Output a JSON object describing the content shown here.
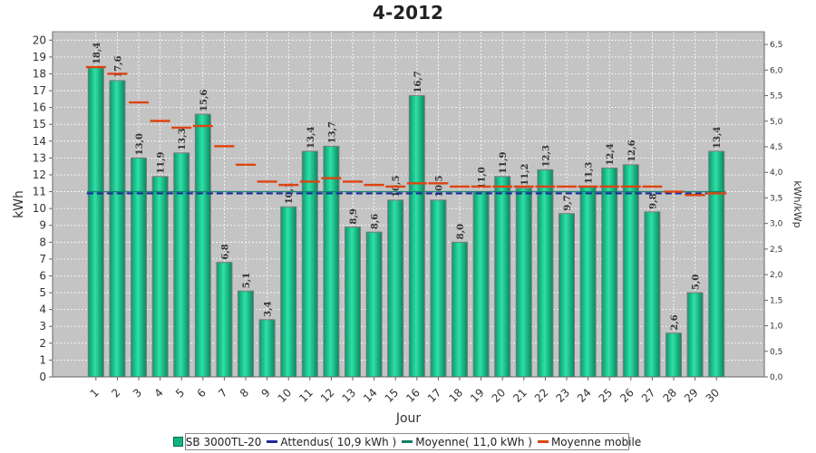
{
  "chart_data": {
    "type": "bar",
    "title": "4-2012",
    "xlabel": "Jour",
    "ylabel": "kWh",
    "y2label": "kWh/kWp",
    "ylim": [
      0,
      20.5
    ],
    "y2lim": [
      0,
      6.75
    ],
    "yticks": [
      "0",
      "1",
      "2",
      "3",
      "4",
      "5",
      "6",
      "7",
      "8",
      "9",
      "10",
      "11",
      "12",
      "13",
      "14",
      "15",
      "16",
      "17",
      "18",
      "19",
      "20"
    ],
    "y2ticks": [
      "0,0",
      "0,5",
      "1,0",
      "1,5",
      "2,0",
      "2,5",
      "3,0",
      "3,5",
      "4,0",
      "4,5",
      "5,0",
      "5,5",
      "6,0",
      "6,5"
    ],
    "grid": true,
    "legend_position": "bottom",
    "categories": [
      "1",
      "2",
      "3",
      "4",
      "5",
      "6",
      "7",
      "8",
      "9",
      "10",
      "11",
      "12",
      "13",
      "14",
      "15",
      "16",
      "17",
      "18",
      "19",
      "20",
      "21",
      "22",
      "23",
      "24",
      "25",
      "26",
      "27",
      "28",
      "29",
      "30"
    ],
    "series": [
      {
        "name": "SB 3000TL-20",
        "kind": "bar",
        "color": "#10b482",
        "values": [
          18.4,
          17.6,
          13.0,
          11.9,
          13.3,
          15.6,
          6.8,
          5.1,
          3.4,
          10.1,
          13.4,
          13.7,
          8.9,
          8.6,
          10.5,
          16.7,
          10.5,
          8.0,
          11.0,
          11.9,
          11.2,
          12.3,
          9.7,
          11.3,
          12.4,
          12.6,
          9.8,
          2.6,
          5.0,
          13.4
        ],
        "labels": [
          "18,4",
          "17,6",
          "13,0",
          "11,9",
          "13,3",
          "15,6",
          "6,8",
          "5,1",
          "3,4",
          "10,1",
          "13,4",
          "13,7",
          "8,9",
          "8,6",
          "10,5",
          "16,7",
          "10,5",
          "8,0",
          "11,0",
          "11,9",
          "11,2",
          "12,3",
          "9,7",
          "11,3",
          "12,4",
          "12,6",
          "9,8",
          "2,6",
          "5,0",
          "13,4"
        ]
      },
      {
        "name": "Attendus( 10,9 kWh )",
        "kind": "dashed-line",
        "color": "#1a2a9c",
        "value": 10.9
      },
      {
        "name": "Moyenne( 11,0 kWh )",
        "kind": "line",
        "color": "#0f7f6a",
        "value": 11.0
      },
      {
        "name": "Moyenne mobile",
        "kind": "step",
        "color": "#dd4411",
        "values": [
          18.4,
          18.0,
          16.3,
          15.2,
          14.8,
          14.9,
          13.7,
          12.6,
          11.6,
          11.4,
          11.6,
          11.8,
          11.6,
          11.4,
          11.3,
          11.5,
          11.5,
          11.3,
          11.3,
          11.3,
          11.3,
          11.3,
          11.3,
          11.3,
          11.3,
          11.3,
          11.3,
          11.0,
          10.8,
          10.9
        ]
      }
    ]
  }
}
